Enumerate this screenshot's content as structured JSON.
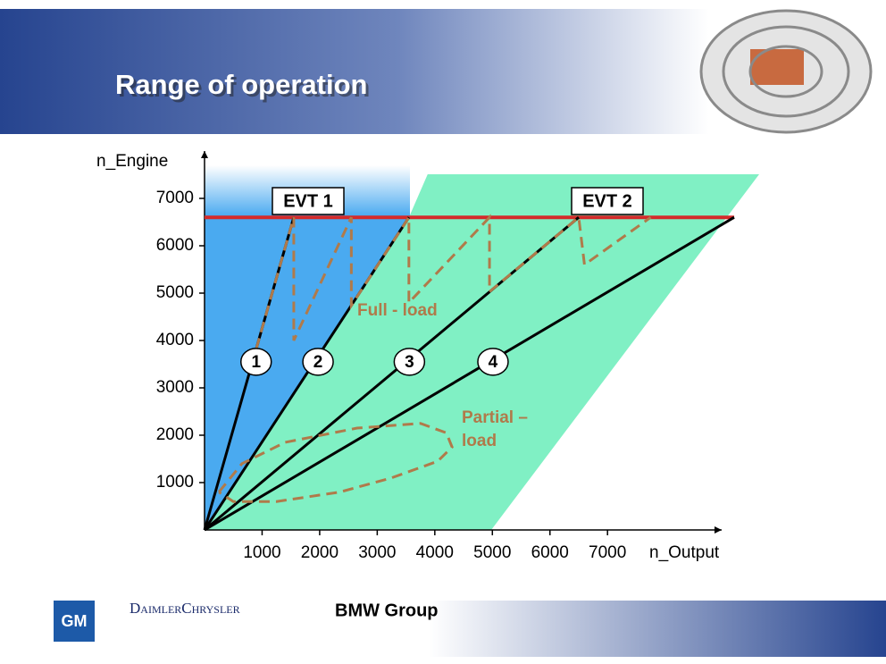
{
  "slide": {
    "title": "Range of operation",
    "logos": [
      "GM",
      "DaimlerChrysler",
      "BMW Group"
    ]
  },
  "chart_data": {
    "type": "line",
    "x_label": "n_Output",
    "y_label": "n_Engine",
    "xlim": [
      0,
      9200
    ],
    "ylim": [
      0,
      8000
    ],
    "xticks": [
      1000,
      2000,
      3000,
      4000,
      5000,
      6000,
      7000
    ],
    "yticks": [
      1000,
      2000,
      3000,
      4000,
      5000,
      6000,
      7000
    ],
    "limit": {
      "value": 6600,
      "color": "#d42a2a"
    },
    "regions": [
      {
        "name": "EVT 1",
        "color": "#4aaaf0"
      },
      {
        "name": "EVT 2",
        "color": "#80f0c4"
      }
    ],
    "series": [
      {
        "name": "1",
        "color": "#000000",
        "dashed": false,
        "x": [
          0,
          1550
        ],
        "y": [
          0,
          6600
        ]
      },
      {
        "name": "2",
        "color": "#000000",
        "dashed": false,
        "x": [
          0,
          3550
        ],
        "y": [
          0,
          6600
        ]
      },
      {
        "name": "3",
        "color": "#000000",
        "dashed": false,
        "x": [
          0,
          6500
        ],
        "y": [
          0,
          6600
        ]
      },
      {
        "name": "4",
        "color": "#000000",
        "dashed": false,
        "x": [
          0,
          9200
        ],
        "y": [
          0,
          6600
        ]
      },
      {
        "name": "Full - load",
        "color": "#b07a4a",
        "dashed": true,
        "x": [
          900,
          1550,
          1550,
          2550,
          2550,
          3550,
          3550,
          4950,
          4950,
          6500,
          6600,
          7750
        ],
        "y": [
          3830,
          6600,
          4000,
          6600,
          4740,
          6600,
          4800,
          6600,
          5030,
          6600,
          5600,
          6600
        ]
      },
      {
        "name": "Partial – load",
        "color": "#b07a4a",
        "dashed": true,
        "x": [
          250,
          650,
          1400,
          2650,
          3750,
          4200,
          4300,
          4050,
          3250,
          2350,
          1250,
          500,
          250
        ],
        "y": [
          800,
          1400,
          1850,
          2150,
          2250,
          2050,
          1750,
          1450,
          1100,
          800,
          600,
          600,
          800
        ]
      }
    ]
  }
}
